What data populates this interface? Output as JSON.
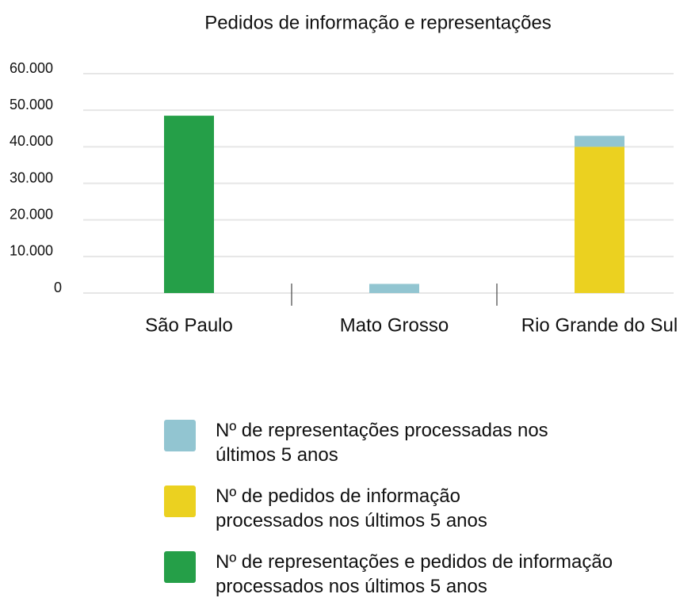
{
  "chart_data": {
    "type": "bar",
    "stacked": true,
    "title": "Pedidos de informação e representações",
    "categories": [
      "São Paulo",
      "Mato Grosso",
      "Rio Grande do Sul"
    ],
    "series": [
      {
        "name": "Nº de representações processadas nos últimos 5 anos",
        "color": "#92c5d1",
        "values": [
          null,
          2500,
          3000
        ]
      },
      {
        "name": "Nº de pedidos de informação processados nos últimos 5 anos",
        "color": "#ebd120",
        "values": [
          null,
          null,
          40000
        ]
      },
      {
        "name": "Nº de representações e pedidos de informação processados nos últimos 5 anos",
        "color": "#259f48",
        "values": [
          48500,
          null,
          null
        ]
      }
    ],
    "ylim": [
      0,
      60000
    ],
    "yticks": [
      0,
      {
        "value": 10000,
        "label": "10.000"
      },
      {
        "value": 20000,
        "label": "20.000"
      },
      {
        "value": 30000,
        "label": "30.000"
      },
      {
        "value": 40000,
        "label": "40.000"
      },
      {
        "value": 50000,
        "label": "50.000"
      },
      {
        "value": 60000,
        "label": "60.000"
      }
    ],
    "grid": true
  }
}
